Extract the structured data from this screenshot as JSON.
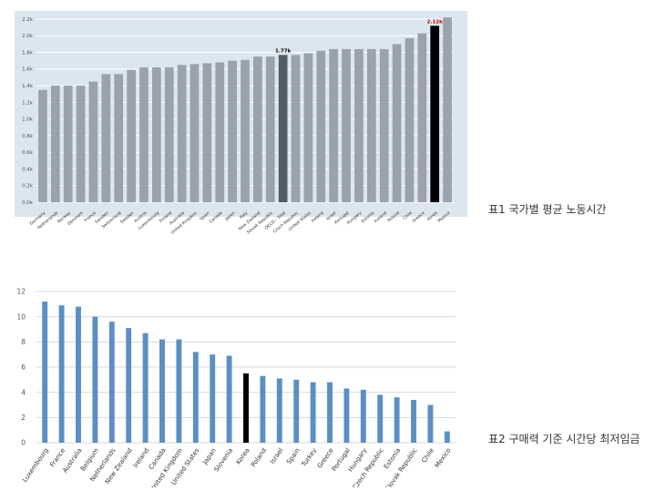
{
  "captions": {
    "chart1": "표1 국가별 평균 노동시간",
    "chart2": "표2 구매력 기준 시간당 최저임금"
  },
  "chart_data": [
    {
      "type": "bar",
      "title": "",
      "xlabel": "",
      "ylabel": "",
      "ylim": [
        0,
        2200
      ],
      "yticks": [
        "0.0k",
        "0.2k",
        "0.4k",
        "0.6k",
        "0.8k",
        "1.0k",
        "1.2k",
        "1.4k",
        "1.6k",
        "1.8k",
        "2.0k",
        "2.2k"
      ],
      "grid": true,
      "categories": [
        "Germany",
        "Netherlands",
        "Norway",
        "Denmark",
        "France",
        "Sweden",
        "Switzerland",
        "Sweden",
        "Austria",
        "Luxembourg",
        "Finland",
        "Australia",
        "United Kingdom",
        "Spain",
        "Canada",
        "Japan",
        "Italy",
        "New Zealand",
        "Slovak Republic",
        "OECD - Total",
        "Czech Republic",
        "United States",
        "Ireland",
        "Israel",
        "Portugal",
        "Hungary",
        "Estonia",
        "Iceland",
        "Poland",
        "Chile",
        "Greece",
        "Korea",
        "Mexico"
      ],
      "values": [
        1350,
        1400,
        1400,
        1400,
        1450,
        1540,
        1540,
        1590,
        1620,
        1620,
        1620,
        1650,
        1660,
        1670,
        1680,
        1700,
        1710,
        1750,
        1750,
        1770,
        1770,
        1790,
        1820,
        1840,
        1840,
        1840,
        1840,
        1840,
        1900,
        1970,
        2030,
        2120,
        2220
      ],
      "highlight": {
        "OECD - Total": "#515c66",
        "Korea": "#000000"
      },
      "data_labels": [
        {
          "category": "OECD - Total",
          "text": "1.77k",
          "color": "#000000"
        },
        {
          "category": "Korea",
          "text": "2.12k",
          "color": "#c00000"
        }
      ],
      "colors": {
        "bar": "#9aa3ad",
        "background": "#dbe6ef",
        "grid": "#ffffff"
      }
    },
    {
      "type": "bar",
      "title": "",
      "xlabel": "",
      "ylabel": "",
      "ylim": [
        0,
        12
      ],
      "yticks": [
        "0",
        "2",
        "4",
        "6",
        "8",
        "10",
        "12"
      ],
      "grid": true,
      "categories": [
        "Luxembourg",
        "France",
        "Australia",
        "Belgium",
        "Netherlands",
        "New Zealand",
        "Ireland",
        "Canada",
        "United Kingdom",
        "United States",
        "Japan",
        "Slovenia",
        "Korea",
        "Poland",
        "Israel",
        "Spain",
        "Turkey",
        "Greece",
        "Portugal",
        "Hungary",
        "Czech Republic",
        "Estonia",
        "Slovak Republic",
        "Chile",
        "Mexico"
      ],
      "values": [
        11.2,
        10.9,
        10.8,
        10.0,
        9.6,
        9.1,
        8.7,
        8.2,
        8.2,
        7.2,
        7.0,
        6.9,
        5.5,
        5.3,
        5.1,
        5.0,
        4.8,
        4.8,
        4.3,
        4.2,
        3.8,
        3.6,
        3.4,
        3.0,
        0.9
      ],
      "highlight": {
        "Korea": "#000000"
      },
      "colors": {
        "bar": "#5b8fc4",
        "background": "#ffffff",
        "grid": "#d9d9d9"
      }
    }
  ]
}
